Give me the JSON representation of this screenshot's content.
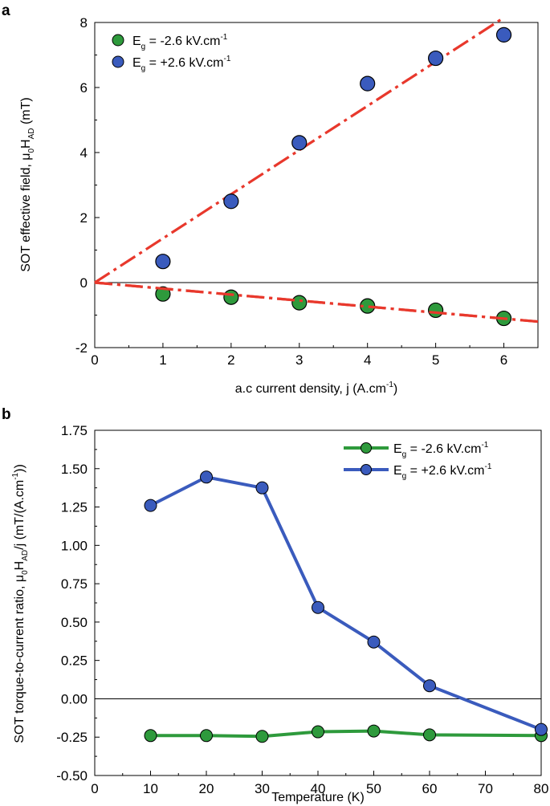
{
  "chart_data": [
    {
      "id": "a",
      "panel_label": "a",
      "type": "scatter",
      "xlabel": "a.c current density, j (A.cm",
      "xlabel_sup": "-1",
      "xlabel_tail": ")",
      "ylabel": "SOT effective field, μ",
      "ylabel_sub1": "0",
      "ylabel_mid": "H",
      "ylabel_sub2": "AD",
      "ylabel_tail": " (mT)",
      "xlim": [
        0,
        6.5
      ],
      "ylim": [
        -2,
        8
      ],
      "xticks": [
        "0",
        "1",
        "2",
        "3",
        "4",
        "5",
        "6"
      ],
      "yticks": [
        "-2",
        "0",
        "2",
        "4",
        "6",
        "8"
      ],
      "zero_line": true,
      "legend_position": "top-left",
      "series": [
        {
          "name": "E",
          "name_sub": "g",
          "name_tail": " = -2.6 kV.cm",
          "name_sup": "-1",
          "color": "#2e9a3c",
          "x": [
            1,
            2,
            3,
            4,
            5,
            6
          ],
          "y": [
            -0.35,
            -0.45,
            -0.62,
            -0.72,
            -0.85,
            -1.1
          ]
        },
        {
          "name": "E",
          "name_sub": "g",
          "name_tail": " = +2.6 kV.cm",
          "name_sup": "-1",
          "color": "#3a5bbd",
          "x": [
            1,
            2,
            3,
            4,
            5,
            6
          ],
          "y": [
            0.65,
            2.5,
            4.3,
            6.12,
            6.9,
            7.62
          ]
        }
      ],
      "fit_lines": [
        {
          "name": "fit-negative",
          "color": "#e8382c",
          "x": [
            0,
            6.5
          ],
          "y": [
            0,
            -1.2
          ]
        },
        {
          "name": "fit-positive",
          "color": "#e8382c",
          "x": [
            0,
            6.0
          ],
          "y": [
            0,
            8.15
          ]
        }
      ]
    },
    {
      "id": "b",
      "panel_label": "b",
      "type": "line",
      "xlabel": "Temperature (K)",
      "ylabel": "SOT torque-to-current ratio, μ",
      "ylabel_sub1": "0",
      "ylabel_mid": "H",
      "ylabel_sub2": "AD",
      "ylabel_tail": "/j (mT/(A.cm",
      "ylabel_sup": "-1",
      "ylabel_end": "))",
      "xlim": [
        0,
        80
      ],
      "ylim": [
        -0.5,
        1.75
      ],
      "xticks": [
        "0",
        "10",
        "20",
        "30",
        "40",
        "50",
        "60",
        "70",
        "80"
      ],
      "yticks": [
        "-0.50",
        "-0.25",
        "0.00",
        "0.25",
        "0.50",
        "0.75",
        "1.00",
        "1.25",
        "1.50",
        "1.75"
      ],
      "zero_line": true,
      "legend_position": "top-right",
      "series": [
        {
          "name": "E",
          "name_sub": "g",
          "name_tail": " = -2.6 kV.cm",
          "name_sup": "-1",
          "color": "#2e9a3c",
          "x": [
            10,
            20,
            30,
            40,
            50,
            60,
            80
          ],
          "y": [
            -0.24,
            -0.24,
            -0.245,
            -0.215,
            -0.21,
            -0.235,
            -0.24
          ]
        },
        {
          "name": "E",
          "name_sub": "g",
          "name_tail": " = +2.6 kV.cm",
          "name_sup": "-1",
          "color": "#3a5bbd",
          "x": [
            10,
            20,
            30,
            40,
            50,
            60,
            80
          ],
          "y": [
            1.26,
            1.445,
            1.375,
            0.595,
            0.37,
            0.085,
            -0.2
          ]
        }
      ]
    }
  ]
}
